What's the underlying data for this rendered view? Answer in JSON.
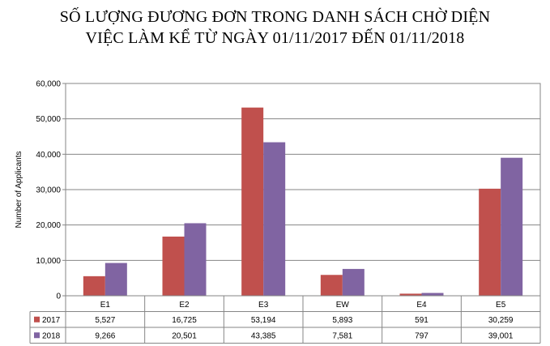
{
  "title_lines": [
    "SỐ LƯỢNG ĐƯƠNG ĐƠN TRONG DANH SÁCH CHỜ DIỆN",
    "VIỆC LÀM KỂ TỪ NGÀY 01/11/2017 ĐẾN 01/11/2018"
  ],
  "chart_data": {
    "type": "bar",
    "title": "SỐ LƯỢNG ĐƯƠNG ĐƠN TRONG DANH SÁCH CHỜ DIỆN VIỆC LÀM KỂ TỪ NGÀY 01/11/2017 ĐẾN 01/11/2018",
    "xlabel": "",
    "ylabel": "Number of Applicants",
    "ylim": [
      0,
      60000
    ],
    "yticks": [
      "0",
      "10,000",
      "20,000",
      "30,000",
      "40,000",
      "50,000",
      "60,000"
    ],
    "ytick_values": [
      0,
      10000,
      20000,
      30000,
      40000,
      50000,
      60000
    ],
    "grid": true,
    "legend": "data-table",
    "categories": [
      "E1",
      "E2",
      "E3",
      "EW",
      "E4",
      "E5"
    ],
    "series": [
      {
        "name": "2017",
        "color": "#c0504d",
        "values": [
          5527,
          16725,
          53194,
          5893,
          591,
          30259
        ],
        "labels": [
          "5,527",
          "16,725",
          "53,194",
          "5,893",
          "591",
          "30,259"
        ]
      },
      {
        "name": "2018",
        "color": "#8064a2",
        "values": [
          9266,
          20501,
          43385,
          7581,
          797,
          39001
        ],
        "labels": [
          "9,266",
          "20,501",
          "43,385",
          "7,581",
          "797",
          "39,001"
        ]
      }
    ]
  }
}
